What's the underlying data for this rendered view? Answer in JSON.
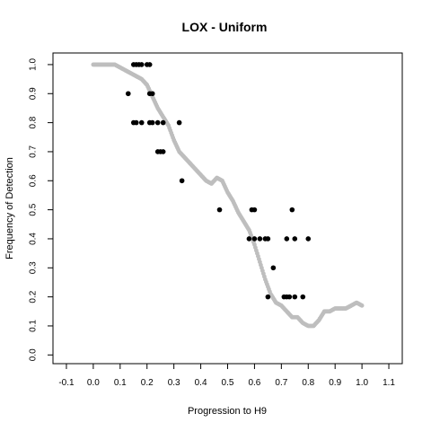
{
  "chart_data": {
    "type": "scatter",
    "title": "LOX - Uniform",
    "xlabel": "Progression to H9",
    "ylabel": "Frequency of Detection",
    "xlim": [
      -0.15,
      1.15
    ],
    "ylim": [
      -0.03,
      1.04
    ],
    "x_ticks": [
      -0.1,
      0.0,
      0.1,
      0.2,
      0.3,
      0.4,
      0.5,
      0.6,
      0.7,
      0.8,
      0.9,
      1.0,
      1.1
    ],
    "x_tick_labels": [
      "-0.1",
      "0.0",
      "0.1",
      "0.2",
      "0.3",
      "0.4",
      "0.5",
      "0.6",
      "0.7",
      "0.8",
      "0.9",
      "1.0",
      "1.1"
    ],
    "y_ticks": [
      0.0,
      0.1,
      0.2,
      0.3,
      0.4,
      0.5,
      0.6,
      0.7,
      0.8,
      0.9,
      1.0
    ],
    "y_tick_labels": [
      "0.0",
      "0.1",
      "0.2",
      "0.3",
      "0.4",
      "0.5",
      "0.6",
      "0.7",
      "0.8",
      "0.9",
      "1.0"
    ],
    "grid": false,
    "series": [
      {
        "style": "gray-points-curve",
        "color": "#bebebe",
        "x": [
          0.0,
          0.02,
          0.04,
          0.06,
          0.08,
          0.1,
          0.12,
          0.14,
          0.16,
          0.18,
          0.2,
          0.22,
          0.24,
          0.26,
          0.28,
          0.3,
          0.32,
          0.34,
          0.36,
          0.38,
          0.4,
          0.42,
          0.44,
          0.46,
          0.48,
          0.5,
          0.52,
          0.54,
          0.56,
          0.58,
          0.6,
          0.62,
          0.64,
          0.66,
          0.68,
          0.7,
          0.72,
          0.74,
          0.76,
          0.78,
          0.8,
          0.82,
          0.84,
          0.86,
          0.88,
          0.9,
          0.92,
          0.94,
          0.96,
          0.98,
          1.0
        ],
        "y": [
          1.0,
          1.0,
          1.0,
          1.0,
          1.0,
          0.99,
          0.98,
          0.97,
          0.96,
          0.95,
          0.93,
          0.89,
          0.85,
          0.82,
          0.79,
          0.74,
          0.7,
          0.68,
          0.66,
          0.64,
          0.62,
          0.6,
          0.59,
          0.61,
          0.6,
          0.56,
          0.53,
          0.49,
          0.46,
          0.43,
          0.38,
          0.32,
          0.26,
          0.21,
          0.18,
          0.17,
          0.15,
          0.13,
          0.13,
          0.11,
          0.1,
          0.1,
          0.12,
          0.15,
          0.15,
          0.16,
          0.16,
          0.16,
          0.17,
          0.18,
          0.17
        ]
      },
      {
        "style": "black-points",
        "color": "#000000",
        "x": [
          0.15,
          0.16,
          0.17,
          0.18,
          0.2,
          0.21,
          0.13,
          0.21,
          0.22,
          0.15,
          0.16,
          0.18,
          0.21,
          0.22,
          0.24,
          0.26,
          0.32,
          0.24,
          0.25,
          0.26,
          0.33,
          0.47,
          0.59,
          0.6,
          0.58,
          0.6,
          0.62,
          0.64,
          0.65,
          0.72,
          0.75,
          0.8,
          0.74,
          0.67,
          0.65,
          0.71,
          0.72,
          0.73,
          0.75,
          0.78
        ],
        "y": [
          1.0,
          1.0,
          1.0,
          1.0,
          1.0,
          1.0,
          0.9,
          0.9,
          0.9,
          0.8,
          0.8,
          0.8,
          0.8,
          0.8,
          0.8,
          0.8,
          0.8,
          0.7,
          0.7,
          0.7,
          0.6,
          0.5,
          0.5,
          0.5,
          0.4,
          0.4,
          0.4,
          0.4,
          0.4,
          0.4,
          0.4,
          0.4,
          0.5,
          0.3,
          0.2,
          0.2,
          0.2,
          0.2,
          0.2,
          0.2
        ]
      }
    ]
  }
}
